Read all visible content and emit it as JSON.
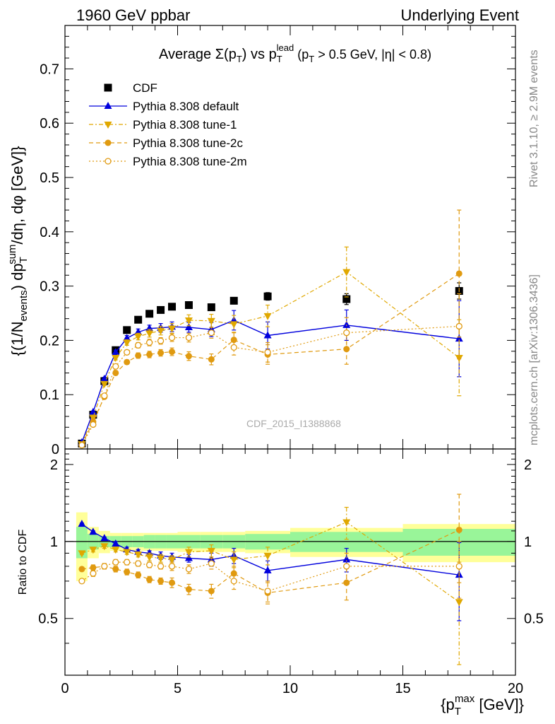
{
  "header": {
    "left": "1960 GeV ppbar",
    "right": "Underlying Event"
  },
  "side": {
    "rivet": "Rivet 3.1.10, ≥ 2.9M events",
    "mcplots": "mcplots.cern.ch [arXiv:1306.3436]"
  },
  "chart_data": [
    {
      "type": "scatter",
      "title": "Average Σ(p_T) vs p_T^lead (p_T > 0.5 GeV, |η| < 0.8)",
      "ylabel": "{(1/N_events) dp_T^sum/dη, dφ [GeV]}",
      "watermark": "CDF_2015_I1388868",
      "xlim": [
        0,
        20
      ],
      "ylim": [
        0,
        0.78
      ],
      "yticks": [
        0,
        0.1,
        0.2,
        0.3,
        0.4,
        0.5,
        0.6,
        0.7
      ],
      "ytick_labels": [
        "0",
        "0.1",
        "0.2",
        "0.3",
        "0.4",
        "0.5",
        "0.6",
        "0.7"
      ],
      "legend_position": "top-left",
      "x": [
        0.75,
        1.25,
        1.75,
        2.25,
        2.75,
        3.25,
        3.75,
        4.25,
        4.75,
        5.5,
        6.5,
        7.5,
        9.0,
        12.5,
        17.5
      ],
      "series": [
        {
          "name": "CDF",
          "color": "#000000",
          "marker": "square",
          "line": "none",
          "values": [
            0.01,
            0.063,
            0.125,
            0.182,
            0.219,
            0.238,
            0.249,
            0.256,
            0.262,
            0.265,
            0.261,
            0.273,
            0.281,
            0.276,
            0.291
          ],
          "err": [
            0.001,
            0.003,
            0.004,
            0.004,
            0.004,
            0.004,
            0.004,
            0.005,
            0.005,
            0.005,
            0.006,
            0.006,
            0.007,
            0.01,
            0.015
          ]
        },
        {
          "name": "Pythia 8.308 default",
          "color": "#0000dd",
          "marker": "triangle-up",
          "line": "solid",
          "values": [
            0.012,
            0.068,
            0.129,
            0.178,
            0.204,
            0.215,
            0.222,
            0.223,
            0.225,
            0.224,
            0.22,
            0.237,
            0.209,
            0.228,
            0.203
          ],
          "err": [
            0.001,
            0.002,
            0.003,
            0.004,
            0.005,
            0.006,
            0.006,
            0.008,
            0.009,
            0.009,
            0.013,
            0.018,
            0.025,
            0.028,
            0.07
          ]
        },
        {
          "name": "Pythia 8.308 tune-1",
          "color": "#e0a800",
          "marker": "triangle-down",
          "line": "dashdot",
          "values": [
            0.009,
            0.058,
            0.12,
            0.168,
            0.196,
            0.207,
            0.213,
            0.218,
            0.222,
            0.237,
            0.236,
            0.23,
            0.245,
            0.326,
            0.168
          ],
          "err": [
            0.001,
            0.002,
            0.003,
            0.004,
            0.005,
            0.006,
            0.007,
            0.008,
            0.009,
            0.01,
            0.012,
            0.016,
            0.02,
            0.046,
            0.07
          ]
        },
        {
          "name": "Pythia 8.308 tune-2c",
          "color": "#e09a10",
          "marker": "circle",
          "line": "dashed",
          "values": [
            0.008,
            0.05,
            0.096,
            0.14,
            0.16,
            0.172,
            0.174,
            0.177,
            0.179,
            0.171,
            0.165,
            0.201,
            0.174,
            0.184,
            0.323
          ],
          "err": [
            0.001,
            0.002,
            0.003,
            0.004,
            0.004,
            0.005,
            0.006,
            0.006,
            0.007,
            0.008,
            0.01,
            0.014,
            0.018,
            0.028,
            0.117
          ]
        },
        {
          "name": "Pythia 8.308 tune-2m",
          "color": "#e09a10",
          "marker": "circle-open",
          "line": "dotted",
          "values": [
            0.007,
            0.045,
            0.098,
            0.152,
            0.178,
            0.191,
            0.196,
            0.199,
            0.205,
            0.205,
            0.214,
            0.187,
            0.178,
            0.214,
            0.226
          ],
          "err": [
            0.001,
            0.002,
            0.003,
            0.004,
            0.004,
            0.005,
            0.006,
            0.006,
            0.007,
            0.008,
            0.01,
            0.014,
            0.018,
            0.028,
            0.06
          ]
        }
      ]
    },
    {
      "type": "scatter",
      "ylabel": "Ratio to CDF",
      "xlabel": "{p_T^max [GeV]}",
      "xlim": [
        0,
        20
      ],
      "ylim": [
        0.3,
        2.3
      ],
      "xticks": [
        0,
        5,
        10,
        15,
        20
      ],
      "xtick_labels": [
        "0",
        "5",
        "10",
        "15",
        "20"
      ],
      "yticks": [
        0.5,
        1,
        2
      ],
      "ytick_labels": [
        "0.5",
        "1",
        "2"
      ],
      "bins": [
        [
          0.5,
          1.0
        ],
        [
          1.0,
          1.5
        ],
        [
          1.5,
          2.0
        ],
        [
          2.0,
          2.5
        ],
        [
          2.5,
          3.0
        ],
        [
          3.0,
          3.5
        ],
        [
          3.5,
          4.0
        ],
        [
          4.0,
          4.5
        ],
        [
          4.5,
          5.0
        ],
        [
          5.0,
          6.0
        ],
        [
          6.0,
          7.0
        ],
        [
          7.0,
          8.0
        ],
        [
          8.0,
          10.0
        ],
        [
          10.0,
          15.0
        ],
        [
          15.0,
          20.0
        ]
      ],
      "band_inner": [
        0.14,
        0.07,
        0.05,
        0.05,
        0.05,
        0.05,
        0.06,
        0.06,
        0.06,
        0.06,
        0.06,
        0.06,
        0.07,
        0.09,
        0.12
      ],
      "band_outer": [
        0.3,
        0.14,
        0.1,
        0.08,
        0.08,
        0.08,
        0.08,
        0.08,
        0.08,
        0.09,
        0.09,
        0.09,
        0.1,
        0.13,
        0.17
      ],
      "x": [
        0.75,
        1.25,
        1.75,
        2.25,
        2.75,
        3.25,
        3.75,
        4.25,
        4.75,
        5.5,
        6.5,
        7.5,
        9.0,
        12.5,
        17.5
      ],
      "series": [
        {
          "name": "Pythia 8.308 default",
          "color": "#0000dd",
          "marker": "triangle-up",
          "line": "solid",
          "values": [
            1.17,
            1.09,
            1.03,
            0.98,
            0.93,
            0.91,
            0.9,
            0.88,
            0.87,
            0.86,
            0.85,
            0.88,
            0.77,
            0.85,
            0.74
          ],
          "err": [
            0.01,
            0.01,
            0.01,
            0.02,
            0.02,
            0.02,
            0.02,
            0.03,
            0.03,
            0.03,
            0.05,
            0.06,
            0.07,
            0.09,
            0.25
          ]
        },
        {
          "name": "Pythia 8.308 tune-1",
          "color": "#e0a800",
          "marker": "triangle-down",
          "line": "dashdot",
          "values": [
            0.9,
            0.93,
            0.96,
            0.93,
            0.91,
            0.89,
            0.87,
            0.86,
            0.85,
            0.91,
            0.92,
            0.85,
            0.88,
            1.19,
            0.58
          ],
          "err": [
            0.01,
            0.02,
            0.02,
            0.02,
            0.02,
            0.02,
            0.03,
            0.03,
            0.03,
            0.04,
            0.05,
            0.06,
            0.07,
            0.17,
            0.25
          ]
        },
        {
          "name": "Pythia 8.308 tune-2c",
          "color": "#e09a10",
          "marker": "circle",
          "line": "dashed",
          "values": [
            0.78,
            0.79,
            0.8,
            0.78,
            0.76,
            0.74,
            0.71,
            0.7,
            0.69,
            0.65,
            0.64,
            0.75,
            0.63,
            0.69,
            1.11
          ],
          "err": [
            0.01,
            0.02,
            0.02,
            0.02,
            0.02,
            0.02,
            0.02,
            0.02,
            0.03,
            0.03,
            0.04,
            0.05,
            0.06,
            0.1,
            0.42
          ]
        },
        {
          "name": "Pythia 8.308 tune-2m",
          "color": "#e09a10",
          "marker": "circle-open",
          "line": "dotted",
          "values": [
            0.7,
            0.75,
            0.8,
            0.83,
            0.83,
            0.82,
            0.81,
            0.8,
            0.8,
            0.78,
            0.82,
            0.7,
            0.64,
            0.8,
            0.8
          ],
          "err": [
            0.01,
            0.02,
            0.02,
            0.02,
            0.02,
            0.02,
            0.02,
            0.02,
            0.03,
            0.03,
            0.04,
            0.05,
            0.06,
            0.1,
            0.2
          ]
        }
      ]
    }
  ]
}
